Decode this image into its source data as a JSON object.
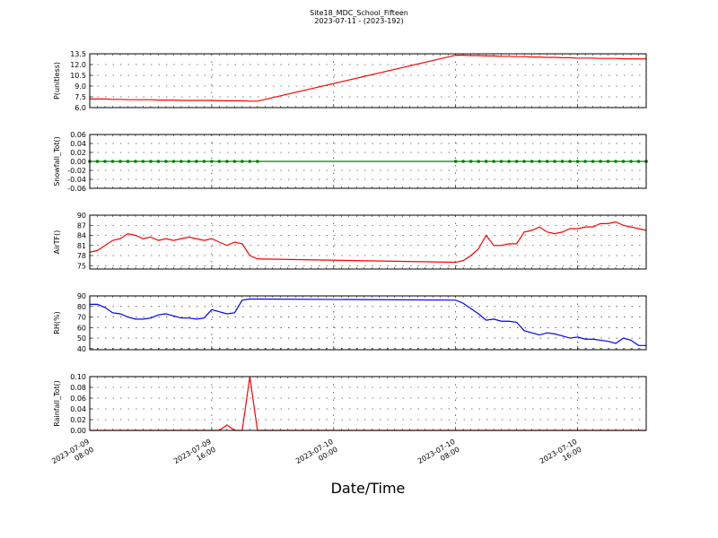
{
  "chart_data": [
    {
      "type": "line",
      "title": "Site18_MDC_School_Fifteen",
      "subtitle": "2023-07-11 - (2023-192)",
      "ylabel": "P(unitless)",
      "x": [
        "2023-07-09 08:00",
        "2023-07-09 08:30",
        "2023-07-09 09:00",
        "2023-07-09 09:30",
        "2023-07-09 10:00",
        "2023-07-09 10:30",
        "2023-07-09 11:00",
        "2023-07-09 11:30",
        "2023-07-09 12:00",
        "2023-07-09 12:30",
        "2023-07-09 13:00",
        "2023-07-09 13:30",
        "2023-07-09 14:00",
        "2023-07-09 14:30",
        "2023-07-09 15:00",
        "2023-07-09 15:30",
        "2023-07-09 16:00",
        "2023-07-09 16:30",
        "2023-07-09 17:00",
        "2023-07-09 17:30",
        "2023-07-09 18:00",
        "2023-07-09 18:30",
        "2023-07-09 19:00",
        "2023-07-10 08:00",
        "2023-07-10 08:30",
        "2023-07-10 09:00",
        "2023-07-10 09:30",
        "2023-07-10 10:00",
        "2023-07-10 10:30",
        "2023-07-10 11:00",
        "2023-07-10 11:30",
        "2023-07-10 12:00",
        "2023-07-10 12:30",
        "2023-07-10 13:00",
        "2023-07-10 13:30",
        "2023-07-10 14:00",
        "2023-07-10 14:30",
        "2023-07-10 15:00",
        "2023-07-10 15:30",
        "2023-07-10 16:00",
        "2023-07-10 16:30",
        "2023-07-10 17:00",
        "2023-07-10 17:30",
        "2023-07-10 18:00",
        "2023-07-10 18:30",
        "2023-07-10 19:00",
        "2023-07-10 19:30",
        "2023-07-10 20:00",
        "2023-07-10 20:30"
      ],
      "series": [
        {
          "color": "#ff0000",
          "values": [
            7.2,
            7.2,
            7.2,
            7.15,
            7.15,
            7.1,
            7.1,
            7.1,
            7.1,
            7.05,
            7.05,
            7.05,
            7.0,
            7.0,
            7.0,
            7.0,
            7.0,
            6.95,
            6.95,
            6.95,
            6.95,
            6.9,
            6.9,
            13.3,
            13.3,
            13.25,
            13.25,
            13.2,
            13.2,
            13.15,
            13.15,
            13.1,
            13.1,
            13.05,
            13.05,
            13.0,
            13.0,
            12.95,
            12.95,
            12.9,
            12.9,
            12.9,
            12.85,
            12.85,
            12.85,
            12.8,
            12.8,
            12.8,
            12.8
          ]
        }
      ],
      "xlim": [
        "2023-07-09 08:00",
        "2023-07-10 20:30"
      ],
      "xticks": [
        "2023-07-09 08:00",
        "2023-07-09 16:00",
        "2023-07-10 00:00",
        "2023-07-10 08:00",
        "2023-07-10 16:00"
      ],
      "ylim": [
        6,
        13.5
      ],
      "yticks": [
        {
          "value": 6,
          "label": "6.0"
        },
        {
          "value": 7.5,
          "label": "7.5"
        },
        {
          "value": 9,
          "label": "9.0"
        },
        {
          "value": 10.5,
          "label": "10.5"
        },
        {
          "value": 12,
          "label": "12.0"
        },
        {
          "value": 13.5,
          "label": "13.5"
        }
      ],
      "grid": true
    },
    {
      "type": "line",
      "ylabel": "Snowfall_Tot()",
      "markers": true,
      "x": [
        "2023-07-09 08:00",
        "2023-07-09 08:30",
        "2023-07-09 09:00",
        "2023-07-09 09:30",
        "2023-07-09 10:00",
        "2023-07-09 10:30",
        "2023-07-09 11:00",
        "2023-07-09 11:30",
        "2023-07-09 12:00",
        "2023-07-09 12:30",
        "2023-07-09 13:00",
        "2023-07-09 13:30",
        "2023-07-09 14:00",
        "2023-07-09 14:30",
        "2023-07-09 15:00",
        "2023-07-09 15:30",
        "2023-07-09 16:00",
        "2023-07-09 16:30",
        "2023-07-09 17:00",
        "2023-07-09 17:30",
        "2023-07-09 18:00",
        "2023-07-09 18:30",
        "2023-07-09 19:00",
        "2023-07-10 08:00",
        "2023-07-10 08:30",
        "2023-07-10 09:00",
        "2023-07-10 09:30",
        "2023-07-10 10:00",
        "2023-07-10 10:30",
        "2023-07-10 11:00",
        "2023-07-10 11:30",
        "2023-07-10 12:00",
        "2023-07-10 12:30",
        "2023-07-10 13:00",
        "2023-07-10 13:30",
        "2023-07-10 14:00",
        "2023-07-10 14:30",
        "2023-07-10 15:00",
        "2023-07-10 15:30",
        "2023-07-10 16:00",
        "2023-07-10 16:30",
        "2023-07-10 17:00",
        "2023-07-10 17:30",
        "2023-07-10 18:00",
        "2023-07-10 18:30",
        "2023-07-10 19:00",
        "2023-07-10 19:30",
        "2023-07-10 20:00",
        "2023-07-10 20:30"
      ],
      "series": [
        {
          "color": "#008000",
          "values": [
            0,
            0,
            0,
            0,
            0,
            0,
            0,
            0,
            0,
            0,
            0,
            0,
            0,
            0,
            0,
            0,
            0,
            0,
            0,
            0,
            0,
            0,
            0,
            0,
            0,
            0,
            0,
            0,
            0,
            0,
            0,
            0,
            0,
            0,
            0,
            0,
            0,
            0,
            0,
            0,
            0,
            0,
            0,
            0,
            0,
            0,
            0,
            0,
            0
          ]
        }
      ],
      "xlim": [
        "2023-07-09 08:00",
        "2023-07-10 20:30"
      ],
      "xticks": [
        "2023-07-09 08:00",
        "2023-07-09 16:00",
        "2023-07-10 00:00",
        "2023-07-10 08:00",
        "2023-07-10 16:00"
      ],
      "ylim": [
        -0.06,
        0.06
      ],
      "yticks": [
        {
          "value": -0.06,
          "label": "-0.06"
        },
        {
          "value": -0.04,
          "label": "-0.04"
        },
        {
          "value": -0.02,
          "label": "-0.02"
        },
        {
          "value": 0,
          "label": "0.00"
        },
        {
          "value": 0.02,
          "label": "0.02"
        },
        {
          "value": 0.04,
          "label": "0.04"
        },
        {
          "value": 0.06,
          "label": "0.06"
        }
      ],
      "grid": true
    },
    {
      "type": "line",
      "ylabel": "AirTF()",
      "x": [
        "2023-07-09 08:00",
        "2023-07-09 08:30",
        "2023-07-09 09:00",
        "2023-07-09 09:30",
        "2023-07-09 10:00",
        "2023-07-09 10:30",
        "2023-07-09 11:00",
        "2023-07-09 11:30",
        "2023-07-09 12:00",
        "2023-07-09 12:30",
        "2023-07-09 13:00",
        "2023-07-09 13:30",
        "2023-07-09 14:00",
        "2023-07-09 14:30",
        "2023-07-09 15:00",
        "2023-07-09 15:30",
        "2023-07-09 16:00",
        "2023-07-09 16:30",
        "2023-07-09 17:00",
        "2023-07-09 17:30",
        "2023-07-09 18:00",
        "2023-07-09 18:30",
        "2023-07-09 19:00",
        "2023-07-10 08:00",
        "2023-07-10 08:30",
        "2023-07-10 09:00",
        "2023-07-10 09:30",
        "2023-07-10 10:00",
        "2023-07-10 10:30",
        "2023-07-10 11:00",
        "2023-07-10 11:30",
        "2023-07-10 12:00",
        "2023-07-10 12:30",
        "2023-07-10 13:00",
        "2023-07-10 13:30",
        "2023-07-10 14:00",
        "2023-07-10 14:30",
        "2023-07-10 15:00",
        "2023-07-10 15:30",
        "2023-07-10 16:00",
        "2023-07-10 16:30",
        "2023-07-10 17:00",
        "2023-07-10 17:30",
        "2023-07-10 18:00",
        "2023-07-10 18:30",
        "2023-07-10 19:00",
        "2023-07-10 19:30",
        "2023-07-10 20:00",
        "2023-07-10 20:30"
      ],
      "series": [
        {
          "color": "#ff0000",
          "values": [
            79,
            79.5,
            81,
            82.5,
            83,
            84.5,
            84,
            83,
            83.5,
            82.5,
            83,
            82.5,
            83,
            83.5,
            83,
            82.5,
            83,
            82,
            81,
            82,
            81.5,
            78,
            77,
            76,
            76.5,
            78,
            80,
            84,
            81,
            81,
            81.5,
            81.5,
            85,
            85.5,
            86.5,
            85,
            84.5,
            85,
            86,
            86,
            86.5,
            86.5,
            87.5,
            87.5,
            88,
            87,
            86.5,
            86,
            85.5
          ]
        }
      ],
      "xlim": [
        "2023-07-09 08:00",
        "2023-07-10 20:30"
      ],
      "xticks": [
        "2023-07-09 08:00",
        "2023-07-09 16:00",
        "2023-07-10 00:00",
        "2023-07-10 08:00",
        "2023-07-10 16:00"
      ],
      "ylim": [
        74,
        90
      ],
      "yticks": [
        75,
        78,
        81,
        84,
        87,
        90
      ],
      "grid": true
    },
    {
      "type": "line",
      "ylabel": "RH(%)",
      "x": [
        "2023-07-09 08:00",
        "2023-07-09 08:30",
        "2023-07-09 09:00",
        "2023-07-09 09:30",
        "2023-07-09 10:00",
        "2023-07-09 10:30",
        "2023-07-09 11:00",
        "2023-07-09 11:30",
        "2023-07-09 12:00",
        "2023-07-09 12:30",
        "2023-07-09 13:00",
        "2023-07-09 13:30",
        "2023-07-09 14:00",
        "2023-07-09 14:30",
        "2023-07-09 15:00",
        "2023-07-09 15:30",
        "2023-07-09 16:00",
        "2023-07-09 16:30",
        "2023-07-09 17:00",
        "2023-07-09 17:30",
        "2023-07-09 18:00",
        "2023-07-09 18:30",
        "2023-07-09 19:00",
        "2023-07-10 08:00",
        "2023-07-10 08:30",
        "2023-07-10 09:00",
        "2023-07-10 09:30",
        "2023-07-10 10:00",
        "2023-07-10 10:30",
        "2023-07-10 11:00",
        "2023-07-10 11:30",
        "2023-07-10 12:00",
        "2023-07-10 12:30",
        "2023-07-10 13:00",
        "2023-07-10 13:30",
        "2023-07-10 14:00",
        "2023-07-10 14:30",
        "2023-07-10 15:00",
        "2023-07-10 15:30",
        "2023-07-10 16:00",
        "2023-07-10 16:30",
        "2023-07-10 17:00",
        "2023-07-10 17:30",
        "2023-07-10 18:00",
        "2023-07-10 18:30",
        "2023-07-10 19:00",
        "2023-07-10 19:30",
        "2023-07-10 20:00",
        "2023-07-10 20:30"
      ],
      "series": [
        {
          "color": "#0000ff",
          "values": [
            82,
            82,
            79,
            74,
            73,
            70,
            68,
            68,
            69,
            72,
            73,
            71,
            69,
            69,
            68,
            69,
            77,
            75,
            73,
            74,
            86,
            87,
            87,
            86,
            83,
            78,
            73,
            67,
            68,
            66,
            66,
            65,
            57,
            55,
            53,
            55,
            54,
            52,
            50,
            51,
            49,
            49,
            48,
            47,
            45,
            50,
            48,
            43,
            43
          ]
        }
      ],
      "xlim": [
        "2023-07-09 08:00",
        "2023-07-10 20:30"
      ],
      "xticks": [
        "2023-07-09 08:00",
        "2023-07-09 16:00",
        "2023-07-10 00:00",
        "2023-07-10 08:00",
        "2023-07-10 16:00"
      ],
      "ylim": [
        39,
        90
      ],
      "yticks": [
        40,
        50,
        60,
        70,
        80,
        90
      ],
      "grid": true
    },
    {
      "type": "line",
      "ylabel": "Rainfall_Tot()",
      "xlabel": "Date/Time",
      "x": [
        "2023-07-09 08:00",
        "2023-07-09 08:30",
        "2023-07-09 09:00",
        "2023-07-09 09:30",
        "2023-07-09 10:00",
        "2023-07-09 10:30",
        "2023-07-09 11:00",
        "2023-07-09 11:30",
        "2023-07-09 12:00",
        "2023-07-09 12:30",
        "2023-07-09 13:00",
        "2023-07-09 13:30",
        "2023-07-09 14:00",
        "2023-07-09 14:30",
        "2023-07-09 15:00",
        "2023-07-09 15:30",
        "2023-07-09 16:00",
        "2023-07-09 16:30",
        "2023-07-09 17:00",
        "2023-07-09 17:30",
        "2023-07-09 18:00",
        "2023-07-09 18:30",
        "2023-07-09 19:00",
        "2023-07-10 08:00",
        "2023-07-10 08:30",
        "2023-07-10 09:00",
        "2023-07-10 09:30",
        "2023-07-10 10:00",
        "2023-07-10 10:30",
        "2023-07-10 11:00",
        "2023-07-10 11:30",
        "2023-07-10 12:00",
        "2023-07-10 12:30",
        "2023-07-10 13:00",
        "2023-07-10 13:30",
        "2023-07-10 14:00",
        "2023-07-10 14:30",
        "2023-07-10 15:00",
        "2023-07-10 15:30",
        "2023-07-10 16:00",
        "2023-07-10 16:30",
        "2023-07-10 17:00",
        "2023-07-10 17:30",
        "2023-07-10 18:00",
        "2023-07-10 18:30",
        "2023-07-10 19:00",
        "2023-07-10 19:30",
        "2023-07-10 20:00",
        "2023-07-10 20:30"
      ],
      "series": [
        {
          "color": "#ff0000",
          "values": [
            0,
            0,
            0,
            0,
            0,
            0,
            0,
            0,
            0,
            0,
            0,
            0,
            0,
            0,
            0,
            0,
            0,
            0,
            0.01,
            0,
            0,
            0.1,
            0,
            0,
            0,
            0,
            0,
            0,
            0,
            0,
            0,
            0,
            0,
            0,
            0,
            0,
            0,
            0,
            0,
            0,
            0,
            0,
            0,
            0,
            0,
            0,
            0,
            0,
            0
          ]
        }
      ],
      "xlim": [
        "2023-07-09 08:00",
        "2023-07-10 20:30"
      ],
      "xticks": [
        "2023-07-09 08:00",
        "2023-07-09 16:00",
        "2023-07-10 00:00",
        "2023-07-10 08:00",
        "2023-07-10 16:00"
      ],
      "ylim": [
        0,
        0.1
      ],
      "yticks": [
        {
          "value": 0,
          "label": "0.00"
        },
        {
          "value": 0.02,
          "label": "0.02"
        },
        {
          "value": 0.04,
          "label": "0.04"
        },
        {
          "value": 0.06,
          "label": "0.06"
        },
        {
          "value": 0.08,
          "label": "0.08"
        },
        {
          "value": 0.1,
          "label": "0.10"
        }
      ],
      "grid": true
    }
  ]
}
